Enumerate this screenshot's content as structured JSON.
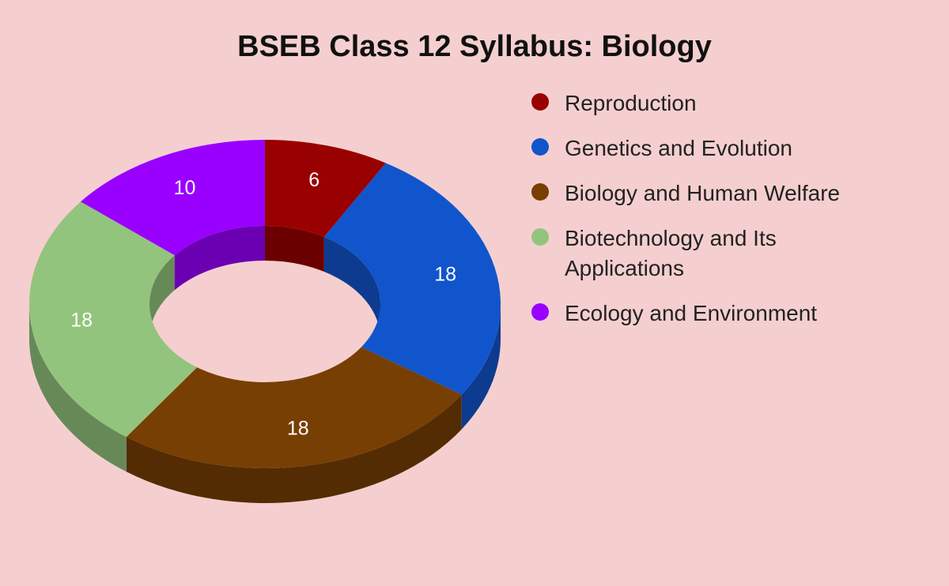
{
  "chart_data": {
    "type": "pie",
    "subtype": "3d-donut",
    "title": "BSEB Class 12 Syllabus: Biology",
    "categories": [
      "Reproduction",
      "Genetics and Evolution",
      "Biology and Human Welfare",
      "Biotechnology and Its Applications",
      "Ecology and Environment"
    ],
    "values": [
      6,
      18,
      18,
      18,
      10
    ],
    "colors": [
      "#990000",
      "#1155cc",
      "#783f04",
      "#93c47d",
      "#9900ff"
    ],
    "legend_position": "right",
    "start_angle": "12 o'clock, clockwise"
  },
  "title": "BSEB Class 12 Syllabus: Biology",
  "legend": [
    {
      "label": "Reproduction",
      "color": "#990000"
    },
    {
      "label": "Genetics and Evolution",
      "color": "#1155cc"
    },
    {
      "label": "Biology and Human Welfare",
      "color": "#783f04"
    },
    {
      "label": "Biotechnology and Its Applications",
      "color": "#93c47d"
    },
    {
      "label": "Ecology and Environment",
      "color": "#9900ff"
    }
  ],
  "labels": [
    "6",
    "18",
    "18",
    "18",
    "10"
  ],
  "background": "#f5cfcf"
}
